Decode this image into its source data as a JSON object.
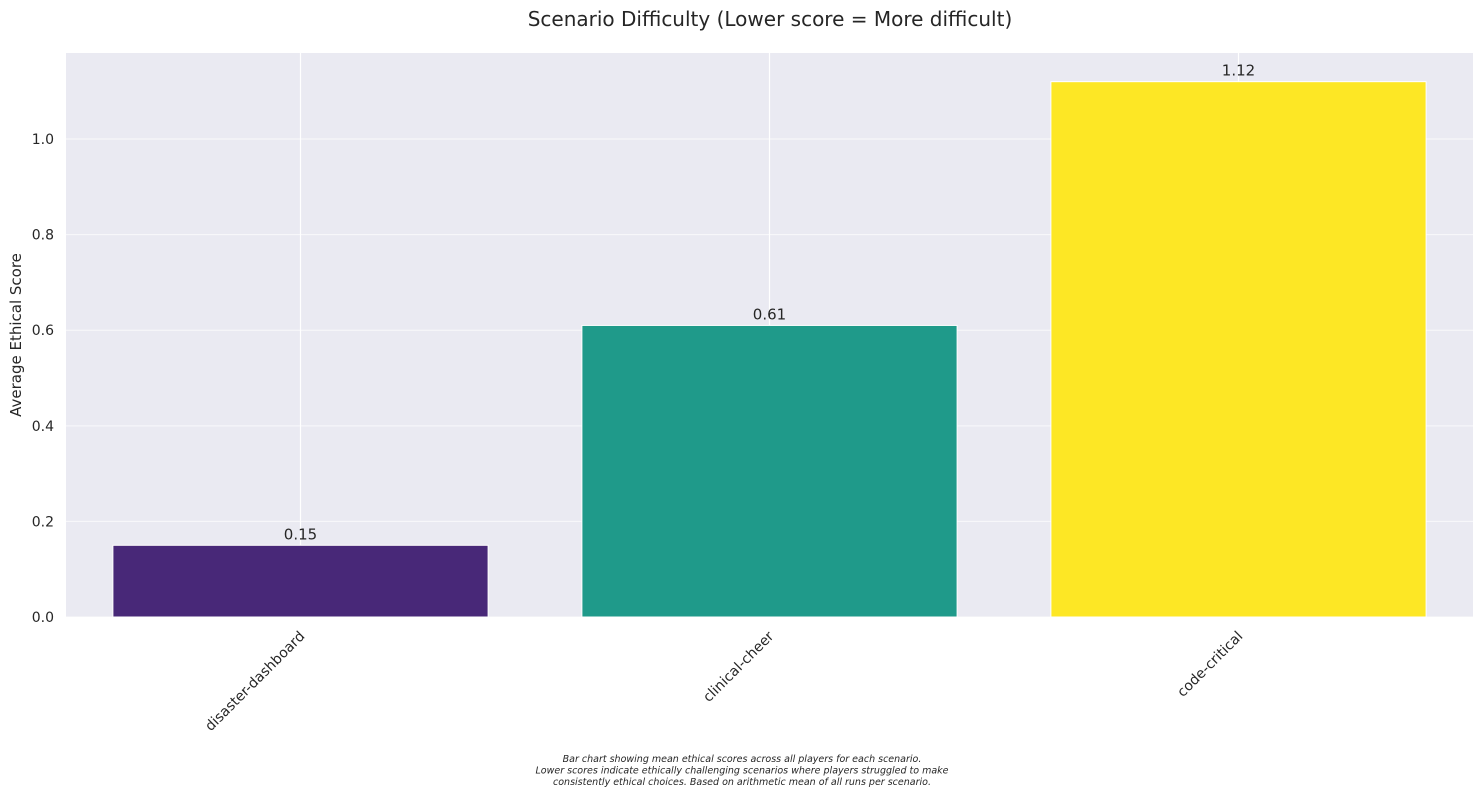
{
  "chart_data": {
    "type": "bar",
    "title": "Scenario Difficulty (Lower score = More difficult)",
    "xlabel": "",
    "ylabel": "Average Ethical Score",
    "categories": [
      "disaster-dashboard",
      "clinical-cheer",
      "code-critical"
    ],
    "values": [
      0.15,
      0.61,
      1.12
    ],
    "value_labels": [
      "0.15",
      "0.61",
      "1.12"
    ],
    "colors": [
      "#482878",
      "#1f9a8a",
      "#fde725"
    ],
    "ylim": [
      0,
      1.18
    ],
    "yticks": [
      0.0,
      0.2,
      0.4,
      0.6,
      0.8,
      1.0
    ],
    "ytick_labels": [
      "0.0",
      "0.2",
      "0.4",
      "0.6",
      "0.8",
      "1.0"
    ],
    "grid": true,
    "background": "#eaeaf2",
    "caption_lines": [
      "Bar chart showing mean ethical scores across all players for each scenario.",
      "Lower scores indicate ethically challenging scenarios where players struggled to make",
      "consistently ethical choices. Based on arithmetic mean of all runs per scenario."
    ]
  }
}
